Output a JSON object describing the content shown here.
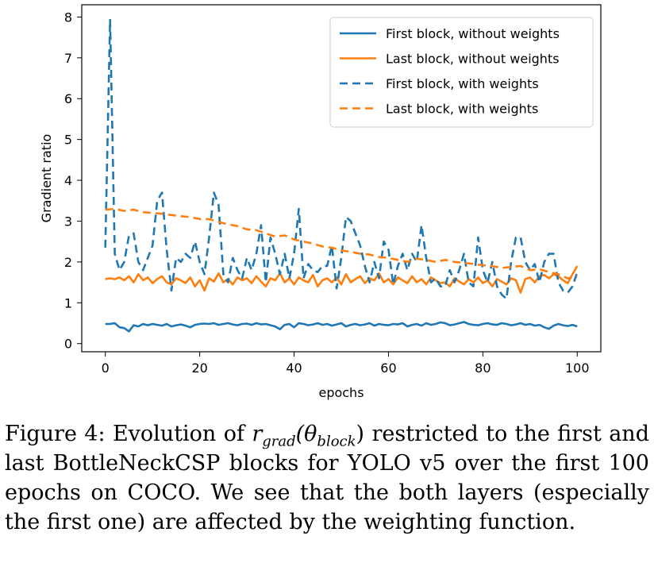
{
  "chart_data": {
    "type": "line",
    "title": "",
    "xlabel": "epochs",
    "ylabel": "Gradient ratio",
    "xlim": [
      -5,
      105
    ],
    "ylim": [
      -0.2,
      8.3
    ],
    "xticks": [
      0,
      20,
      40,
      60,
      80,
      100
    ],
    "yticks": [
      0,
      1,
      2,
      3,
      4,
      5,
      6,
      7,
      8
    ],
    "grid": false,
    "legend_position": "top-right",
    "series": [
      {
        "name": "First block, without weights",
        "style": "solid",
        "color": "#1f77b4",
        "x": [
          0,
          1,
          2,
          3,
          4,
          5,
          6,
          7,
          8,
          9,
          10,
          11,
          12,
          13,
          14,
          15,
          16,
          17,
          18,
          19,
          20,
          21,
          22,
          23,
          24,
          25,
          26,
          27,
          28,
          29,
          30,
          31,
          32,
          33,
          34,
          35,
          36,
          37,
          38,
          39,
          40,
          41,
          42,
          43,
          44,
          45,
          46,
          47,
          48,
          49,
          50,
          51,
          52,
          53,
          54,
          55,
          56,
          57,
          58,
          59,
          60,
          61,
          62,
          63,
          64,
          65,
          66,
          67,
          68,
          69,
          70,
          71,
          72,
          73,
          74,
          75,
          76,
          77,
          78,
          79,
          80,
          81,
          82,
          83,
          84,
          85,
          86,
          87,
          88,
          89,
          90,
          91,
          92,
          93,
          94,
          95,
          96,
          97,
          98,
          99,
          100
        ],
        "values": [
          0.48,
          0.48,
          0.5,
          0.4,
          0.38,
          0.3,
          0.45,
          0.42,
          0.48,
          0.45,
          0.48,
          0.46,
          0.44,
          0.48,
          0.42,
          0.45,
          0.47,
          0.44,
          0.4,
          0.46,
          0.48,
          0.49,
          0.48,
          0.5,
          0.46,
          0.48,
          0.5,
          0.47,
          0.45,
          0.48,
          0.49,
          0.46,
          0.5,
          0.47,
          0.48,
          0.45,
          0.42,
          0.35,
          0.46,
          0.48,
          0.4,
          0.5,
          0.48,
          0.45,
          0.47,
          0.5,
          0.46,
          0.48,
          0.44,
          0.47,
          0.5,
          0.42,
          0.46,
          0.48,
          0.45,
          0.47,
          0.5,
          0.44,
          0.48,
          0.46,
          0.45,
          0.48,
          0.47,
          0.5,
          0.42,
          0.46,
          0.48,
          0.44,
          0.5,
          0.46,
          0.48,
          0.52,
          0.5,
          0.45,
          0.47,
          0.5,
          0.53,
          0.48,
          0.46,
          0.45,
          0.48,
          0.5,
          0.47,
          0.46,
          0.5,
          0.48,
          0.45,
          0.47,
          0.5,
          0.46,
          0.48,
          0.44,
          0.46,
          0.4,
          0.36,
          0.44,
          0.48,
          0.45,
          0.43,
          0.46,
          0.42
        ]
      },
      {
        "name": "Last block, without weights",
        "style": "solid",
        "color": "#ff7f0e",
        "x": [
          0,
          1,
          2,
          3,
          4,
          5,
          6,
          7,
          8,
          9,
          10,
          11,
          12,
          13,
          14,
          15,
          16,
          17,
          18,
          19,
          20,
          21,
          22,
          23,
          24,
          25,
          26,
          27,
          28,
          29,
          30,
          31,
          32,
          33,
          34,
          35,
          36,
          37,
          38,
          39,
          40,
          41,
          42,
          43,
          44,
          45,
          46,
          47,
          48,
          49,
          50,
          51,
          52,
          53,
          54,
          55,
          56,
          57,
          58,
          59,
          60,
          61,
          62,
          63,
          64,
          65,
          66,
          67,
          68,
          69,
          70,
          71,
          72,
          73,
          74,
          75,
          76,
          77,
          78,
          79,
          80,
          81,
          82,
          83,
          84,
          85,
          86,
          87,
          88,
          89,
          90,
          91,
          92,
          93,
          94,
          95,
          96,
          97,
          98,
          99,
          100
        ],
        "values": [
          1.58,
          1.6,
          1.58,
          1.62,
          1.55,
          1.65,
          1.5,
          1.7,
          1.55,
          1.62,
          1.48,
          1.58,
          1.65,
          1.5,
          1.45,
          1.6,
          1.55,
          1.48,
          1.62,
          1.4,
          1.55,
          1.3,
          1.6,
          1.52,
          1.72,
          1.5,
          1.58,
          1.45,
          1.62,
          1.55,
          1.6,
          1.48,
          1.65,
          1.52,
          1.4,
          1.6,
          1.55,
          1.72,
          1.5,
          1.6,
          1.45,
          1.62,
          1.55,
          1.5,
          1.68,
          1.4,
          1.55,
          1.6,
          1.5,
          1.62,
          1.45,
          1.7,
          1.5,
          1.58,
          1.65,
          1.48,
          1.6,
          1.55,
          1.72,
          1.5,
          1.58,
          1.45,
          1.62,
          1.55,
          1.48,
          1.65,
          1.5,
          1.58,
          1.45,
          1.62,
          1.55,
          1.48,
          1.5,
          1.4,
          1.6,
          1.52,
          1.45,
          1.58,
          1.5,
          1.62,
          1.48,
          1.55,
          1.4,
          1.58,
          1.52,
          1.45,
          1.6,
          1.55,
          1.25,
          1.58,
          1.62,
          1.5,
          1.65,
          1.68,
          1.6,
          1.7,
          1.65,
          1.55,
          1.48,
          1.7,
          1.9
        ]
      },
      {
        "name": "First block, with weights",
        "style": "dashed",
        "color": "#1f77b4",
        "x": [
          0,
          1,
          2,
          3,
          4,
          5,
          6,
          7,
          8,
          9,
          10,
          11,
          12,
          13,
          14,
          15,
          16,
          17,
          18,
          19,
          20,
          21,
          22,
          23,
          24,
          25,
          26,
          27,
          28,
          29,
          30,
          31,
          32,
          33,
          34,
          35,
          36,
          37,
          38,
          39,
          40,
          41,
          42,
          43,
          44,
          45,
          46,
          47,
          48,
          49,
          50,
          51,
          52,
          53,
          54,
          55,
          56,
          57,
          58,
          59,
          60,
          61,
          62,
          63,
          64,
          65,
          66,
          67,
          68,
          69,
          70,
          71,
          72,
          73,
          74,
          75,
          76,
          77,
          78,
          79,
          80,
          81,
          82,
          83,
          84,
          85,
          86,
          87,
          88,
          89,
          90,
          91,
          92,
          93,
          94,
          95,
          96,
          97,
          98,
          99,
          100
        ],
        "values": [
          2.35,
          7.95,
          2.2,
          1.8,
          2.0,
          2.65,
          2.7,
          2.0,
          1.8,
          2.1,
          2.4,
          3.5,
          3.7,
          2.3,
          1.3,
          2.1,
          2.0,
          2.2,
          2.1,
          2.5,
          2.0,
          1.7,
          2.6,
          3.7,
          3.4,
          1.7,
          1.5,
          2.1,
          1.8,
          1.6,
          2.1,
          1.8,
          2.2,
          2.9,
          1.5,
          2.6,
          2.2,
          1.7,
          2.2,
          1.6,
          2.2,
          3.3,
          1.6,
          1.95,
          1.8,
          1.75,
          1.9,
          1.9,
          2.4,
          1.35,
          2.1,
          3.1,
          3.0,
          2.7,
          2.4,
          1.9,
          1.5,
          2.0,
          1.6,
          2.5,
          2.3,
          1.45,
          1.9,
          2.2,
          1.8,
          2.2,
          2.0,
          2.9,
          2.1,
          1.5,
          1.6,
          1.4,
          1.4,
          1.8,
          1.5,
          1.8,
          2.2,
          1.5,
          1.4,
          2.6,
          1.8,
          1.5,
          2.0,
          1.4,
          1.2,
          1.1,
          2.0,
          2.6,
          2.6,
          2.0,
          1.8,
          1.95,
          1.5,
          2.0,
          2.2,
          2.2,
          1.5,
          1.3,
          1.25,
          1.4,
          1.75
        ]
      },
      {
        "name": "Last block, with weights",
        "style": "dashed",
        "color": "#ff7f0e",
        "x": [
          0,
          2,
          4,
          6,
          8,
          10,
          12,
          14,
          16,
          18,
          20,
          22,
          24,
          26,
          28,
          30,
          32,
          34,
          36,
          38,
          40,
          42,
          44,
          46,
          48,
          50,
          52,
          54,
          56,
          58,
          60,
          62,
          64,
          66,
          68,
          70,
          72,
          74,
          76,
          78,
          80,
          82,
          84,
          86,
          88,
          90,
          92,
          94,
          96,
          98,
          100
        ],
        "values": [
          3.28,
          3.3,
          3.25,
          3.28,
          3.22,
          3.2,
          3.18,
          3.15,
          3.12,
          3.1,
          3.05,
          3.05,
          2.98,
          2.92,
          2.88,
          2.8,
          2.78,
          2.7,
          2.62,
          2.65,
          2.55,
          2.5,
          2.45,
          2.38,
          2.35,
          2.28,
          2.25,
          2.2,
          2.18,
          2.12,
          2.1,
          2.05,
          2.0,
          2.08,
          2.05,
          2.0,
          2.05,
          2.0,
          1.98,
          1.95,
          1.92,
          1.9,
          1.85,
          1.88,
          1.9,
          1.8,
          1.82,
          1.75,
          1.7,
          1.6,
          1.65
        ]
      }
    ]
  },
  "caption": {
    "fig_label": "Figure 4:",
    "pre_math": "Evolution of",
    "math_r": "r",
    "math_sub": "grad",
    "math_open": "(θ",
    "math_sub2": "block",
    "math_close": ")",
    "post_math": "restricted to the first and last BottleNeckCSP blocks for YOLO v5 over the first 100 epochs on COCO. We see that the both layers (especially the first one) are affected by the weighting function."
  }
}
